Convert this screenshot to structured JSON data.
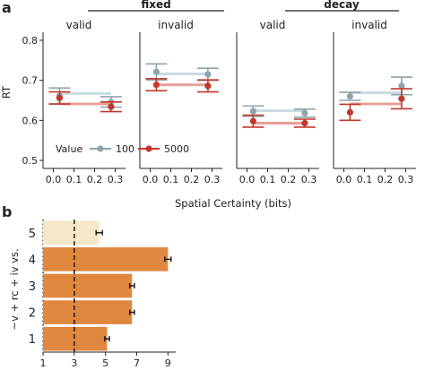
{
  "panel_a_label": "a",
  "panel_b_label": "b",
  "chart_data": [
    {
      "type": "scatter",
      "groups": [
        "fixed",
        "decay"
      ],
      "facets": [
        "valid",
        "invalid",
        "valid",
        "invalid"
      ],
      "ylabel": "RT",
      "xlabel": "Spatial Certainty (bits)",
      "ylim": [
        0.48,
        0.82
      ],
      "xlim": [
        -0.05,
        0.35
      ],
      "yticks": [
        "0.5",
        "0.6",
        "0.7",
        "0.8"
      ],
      "xticks": [
        "0.0",
        "0.1",
        "0.2",
        "0.3"
      ],
      "legend_title": "Value",
      "legend_position": "bottom-left",
      "series": [
        {
          "name": "100",
          "color": "#8fa3ad",
          "line_color": "#c9dbe1",
          "panels": [
            {
              "x": [
                0.03,
                0.28
              ],
              "y": [
                0.661,
                0.646
              ],
              "err": [
                0.02,
                0.013
              ],
              "mean": 0.667
            },
            {
              "x": [
                0.03,
                0.28
              ],
              "y": [
                0.721,
                0.715
              ],
              "err": [
                0.02,
                0.015
              ],
              "mean": 0.716
            },
            {
              "x": [
                0.03,
                0.28
              ],
              "y": [
                0.623,
                0.618
              ],
              "err": [
                0.013,
                0.01
              ],
              "mean": 0.624
            },
            {
              "x": [
                0.03,
                0.28
              ],
              "y": [
                0.66,
                0.686
              ],
              "err": [
                0.01,
                0.022
              ],
              "mean": 0.669
            }
          ]
        },
        {
          "name": "5000",
          "color": "#c0392b",
          "line_color": "#e8a097",
          "panels": [
            {
              "x": [
                0.03,
                0.28
              ],
              "y": [
                0.656,
                0.634
              ],
              "err": [
                0.015,
                0.012
              ],
              "mean": 0.641
            },
            {
              "x": [
                0.03,
                0.28
              ],
              "y": [
                0.689,
                0.686
              ],
              "err": [
                0.015,
                0.015
              ],
              "mean": 0.689
            },
            {
              "x": [
                0.03,
                0.28
              ],
              "y": [
                0.598,
                0.593
              ],
              "err": [
                0.015,
                0.01
              ],
              "mean": 0.593
            },
            {
              "x": [
                0.03,
                0.28
              ],
              "y": [
                0.62,
                0.654
              ],
              "err": [
                0.02,
                0.025
              ],
              "mean": 0.641
            }
          ]
        }
      ]
    },
    {
      "type": "bar",
      "orientation": "horizontal",
      "categories": [
        "5",
        "4",
        "3",
        "2",
        "1"
      ],
      "values": [
        4.6,
        9.0,
        6.7,
        6.7,
        5.1
      ],
      "errors": [
        0.2,
        0.2,
        0.15,
        0.15,
        0.15
      ],
      "colors": [
        "#f5e8c8",
        "#e0873f",
        "#e0873f",
        "#e0873f",
        "#e0873f"
      ],
      "xticks": [
        "1",
        "3",
        "5",
        "7",
        "9"
      ],
      "xlim": [
        1,
        9.5
      ],
      "reference_line": 3,
      "ylabel": "~v + rc + iv   vs."
    }
  ]
}
